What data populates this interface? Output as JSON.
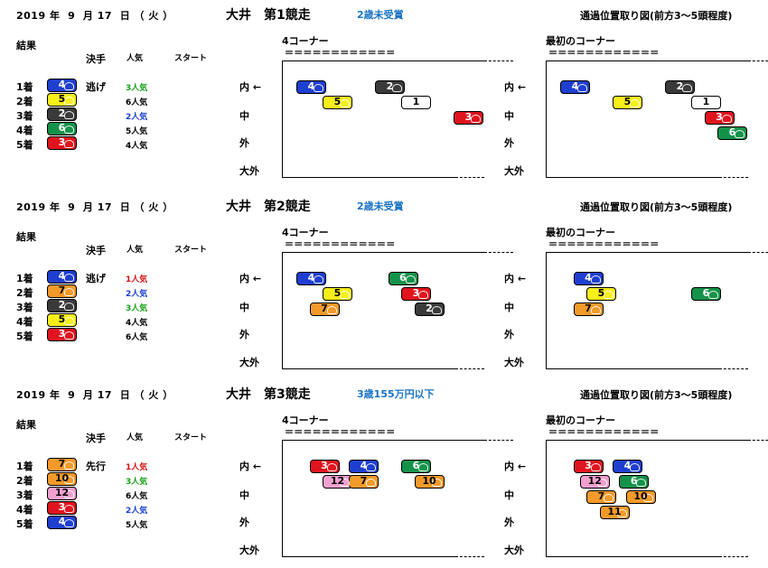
{
  "races": [
    {
      "date": "2019 年  9  月 17  日 （ 火 ）",
      "title": "大井　第1競走",
      "class": "2歳未受賞",
      "diagram_title": "通過位置取り図(前方3～5頭程度)",
      "results_label": "結果",
      "col_tactic": "決手",
      "col_pop": "人気",
      "col_start": "スタート",
      "winner_tactic": "逃げ",
      "results": [
        {
          "rank": "1着",
          "num": "4",
          "pop": "3人気",
          "pop_color": "#17a117"
        },
        {
          "rank": "2着",
          "num": "5",
          "pop": "6人気",
          "pop_color": "#000000"
        },
        {
          "rank": "3着",
          "num": "2",
          "pop": "2人気",
          "pop_color": "#1a3fd1"
        },
        {
          "rank": "4着",
          "num": "6",
          "pop": "5人気",
          "pop_color": "#000000"
        },
        {
          "rank": "5着",
          "num": "3",
          "pop": "4人気",
          "pop_color": "#000000"
        }
      ],
      "corner4": {
        "label": "4コーナー",
        "dashes": "＝＝＝＝＝＝＝＝＝＝＝＝",
        "positions": [
          {
            "num": "4",
            "col": 0,
            "row": 0
          },
          {
            "num": "2",
            "col": 3,
            "row": 0
          },
          {
            "num": "5",
            "col": 1,
            "row": 1
          },
          {
            "num": "1",
            "col": 4,
            "row": 1
          },
          {
            "num": "3",
            "col": 6,
            "row": 2
          }
        ]
      },
      "corner1": {
        "label": "最初のコーナー",
        "dashes": "＝＝＝＝＝＝＝＝＝＝＝＝",
        "positions": [
          {
            "num": "4",
            "col": 0,
            "row": 0
          },
          {
            "num": "2",
            "col": 4,
            "row": 0
          },
          {
            "num": "5",
            "col": 2,
            "row": 1
          },
          {
            "num": "1",
            "col": 5,
            "row": 1
          },
          {
            "num": "3",
            "col": 5.5,
            "row": 2
          },
          {
            "num": "6",
            "col": 6,
            "row": 3
          }
        ]
      }
    },
    {
      "date": "2019 年  9  月 17  日 （ 火 ）",
      "title": "大井　第2競走",
      "class": "2歳未受賞",
      "diagram_title": "通過位置取り図(前方3～5頭程度)",
      "results_label": "結果",
      "col_tactic": "決手",
      "col_pop": "人気",
      "col_start": "スタート",
      "winner_tactic": "逃げ",
      "results": [
        {
          "rank": "1着",
          "num": "4",
          "pop": "1人気",
          "pop_color": "#d41414"
        },
        {
          "rank": "2着",
          "num": "7",
          "pop": "2人気",
          "pop_color": "#1a3fd1"
        },
        {
          "rank": "3着",
          "num": "2",
          "pop": "3人気",
          "pop_color": "#17a117"
        },
        {
          "rank": "4着",
          "num": "5",
          "pop": "4人気",
          "pop_color": "#000000"
        },
        {
          "rank": "5着",
          "num": "3",
          "pop": "6人気",
          "pop_color": "#000000"
        }
      ],
      "corner4": {
        "label": "4コーナー",
        "dashes": "＝＝＝＝＝＝＝＝＝＝＝＝",
        "positions": [
          {
            "num": "4",
            "col": 0,
            "row": 0
          },
          {
            "num": "6",
            "col": 3.5,
            "row": 0
          },
          {
            "num": "5",
            "col": 1,
            "row": 1
          },
          {
            "num": "3",
            "col": 4,
            "row": 1
          },
          {
            "num": "7",
            "col": 0.5,
            "row": 2
          },
          {
            "num": "2",
            "col": 4.5,
            "row": 2
          }
        ]
      },
      "corner1": {
        "label": "最初のコーナー",
        "dashes": "＝＝＝＝＝＝＝＝＝＝＝＝",
        "positions": [
          {
            "num": "4",
            "col": 0.5,
            "row": 0
          },
          {
            "num": "5",
            "col": 1,
            "row": 1
          },
          {
            "num": "6",
            "col": 5,
            "row": 1
          },
          {
            "num": "7",
            "col": 0.5,
            "row": 2
          }
        ]
      }
    },
    {
      "date": "2019 年  9  月 17  日 （ 火 ）",
      "title": "大井　第3競走",
      "class": "3歳155万円以下",
      "diagram_title": "通過位置取り図(前方3～5頭程度)",
      "results_label": "結果",
      "col_tactic": "決手",
      "col_pop": "人気",
      "col_start": "スタート",
      "winner_tactic": "先行",
      "results": [
        {
          "rank": "1着",
          "num": "7",
          "pop": "1人気",
          "pop_color": "#d41414"
        },
        {
          "rank": "2着",
          "num": "10",
          "pop": "3人気",
          "pop_color": "#17a117"
        },
        {
          "rank": "3着",
          "num": "12",
          "pop": "6人気",
          "pop_color": "#000000"
        },
        {
          "rank": "4着",
          "num": "3",
          "pop": "2人気",
          "pop_color": "#1a3fd1"
        },
        {
          "rank": "5着",
          "num": "4",
          "pop": "5人気",
          "pop_color": "#000000"
        }
      ],
      "corner4": {
        "label": "4コーナー",
        "dashes": "＝＝＝＝＝＝＝＝＝＝＝＝",
        "positions": [
          {
            "num": "3",
            "col": 0.5,
            "row": 0
          },
          {
            "num": "4",
            "col": 2,
            "row": 0
          },
          {
            "num": "6",
            "col": 4,
            "row": 0
          },
          {
            "num": "12",
            "col": 1,
            "row": 1
          },
          {
            "num": "7",
            "col": 2,
            "row": 1
          },
          {
            "num": "10",
            "col": 4.5,
            "row": 1
          }
        ]
      },
      "corner1": {
        "label": "最初のコーナー",
        "dashes": "＝＝＝＝＝＝＝＝＝＝＝＝",
        "positions": [
          {
            "num": "3",
            "col": 0.5,
            "row": 0
          },
          {
            "num": "4",
            "col": 2,
            "row": 0
          },
          {
            "num": "12",
            "col": 0.75,
            "row": 1
          },
          {
            "num": "6",
            "col": 2.25,
            "row": 1
          },
          {
            "num": "7",
            "col": 1,
            "row": 2
          },
          {
            "num": "10",
            "col": 2.5,
            "row": 2
          },
          {
            "num": "11",
            "col": 1.5,
            "row": 3
          }
        ]
      }
    }
  ],
  "lanes": [
    "内 ←",
    "中",
    "外",
    "大外"
  ],
  "horse_colors": {
    "1": {
      "bg": "#ffffff",
      "fg": "#000000"
    },
    "2": {
      "bg": "#3a3a3a",
      "fg": "#ffffff"
    },
    "3": {
      "bg": "#e0141e",
      "fg": "#ffffff"
    },
    "4": {
      "bg": "#1f3fd0",
      "fg": "#ffffff"
    },
    "5": {
      "bg": "#f6ef1a",
      "fg": "#000000"
    },
    "6": {
      "bg": "#15924a",
      "fg": "#ffffff"
    },
    "7": {
      "bg": "#f39a2a",
      "fg": "#000000"
    },
    "10": {
      "bg": "#f39a2a",
      "fg": "#000000"
    },
    "11": {
      "bg": "#f39a2a",
      "fg": "#000000"
    },
    "12": {
      "bg": "#f2a0d0",
      "fg": "#000000"
    }
  }
}
